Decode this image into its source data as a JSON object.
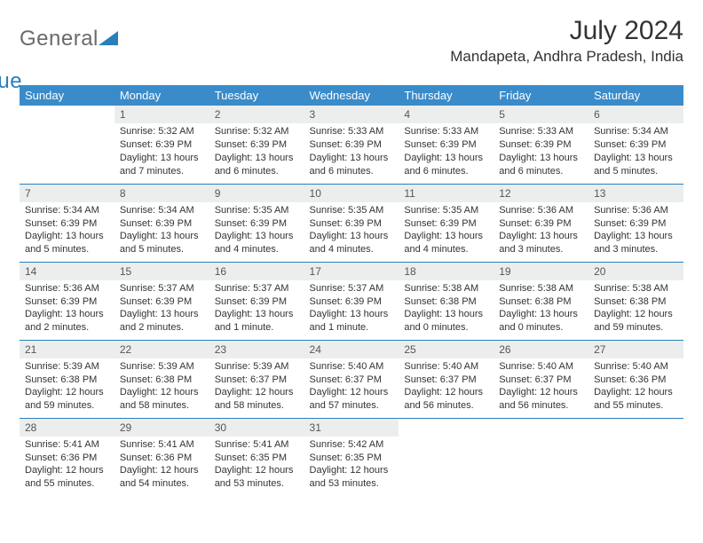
{
  "logo": {
    "part1": "General",
    "part2": "Blue"
  },
  "title": "July 2024",
  "location": "Mandapeta, Andhra Pradesh, India",
  "colors": {
    "header_bg": "#3a8bc9",
    "header_text": "#ffffff",
    "daynum_bg": "#eceeee",
    "row_sep": "#2a7fba",
    "logo_gray": "#6a6a6a",
    "logo_blue": "#2a7fba"
  },
  "day_headers": [
    "Sunday",
    "Monday",
    "Tuesday",
    "Wednesday",
    "Thursday",
    "Friday",
    "Saturday"
  ],
  "weeks": [
    [
      {
        "n": "",
        "sr": "",
        "ss": "",
        "dl": "",
        "empty": true
      },
      {
        "n": "1",
        "sr": "Sunrise: 5:32 AM",
        "ss": "Sunset: 6:39 PM",
        "dl": "Daylight: 13 hours and 7 minutes."
      },
      {
        "n": "2",
        "sr": "Sunrise: 5:32 AM",
        "ss": "Sunset: 6:39 PM",
        "dl": "Daylight: 13 hours and 6 minutes."
      },
      {
        "n": "3",
        "sr": "Sunrise: 5:33 AM",
        "ss": "Sunset: 6:39 PM",
        "dl": "Daylight: 13 hours and 6 minutes."
      },
      {
        "n": "4",
        "sr": "Sunrise: 5:33 AM",
        "ss": "Sunset: 6:39 PM",
        "dl": "Daylight: 13 hours and 6 minutes."
      },
      {
        "n": "5",
        "sr": "Sunrise: 5:33 AM",
        "ss": "Sunset: 6:39 PM",
        "dl": "Daylight: 13 hours and 6 minutes."
      },
      {
        "n": "6",
        "sr": "Sunrise: 5:34 AM",
        "ss": "Sunset: 6:39 PM",
        "dl": "Daylight: 13 hours and 5 minutes."
      }
    ],
    [
      {
        "n": "7",
        "sr": "Sunrise: 5:34 AM",
        "ss": "Sunset: 6:39 PM",
        "dl": "Daylight: 13 hours and 5 minutes."
      },
      {
        "n": "8",
        "sr": "Sunrise: 5:34 AM",
        "ss": "Sunset: 6:39 PM",
        "dl": "Daylight: 13 hours and 5 minutes."
      },
      {
        "n": "9",
        "sr": "Sunrise: 5:35 AM",
        "ss": "Sunset: 6:39 PM",
        "dl": "Daylight: 13 hours and 4 minutes."
      },
      {
        "n": "10",
        "sr": "Sunrise: 5:35 AM",
        "ss": "Sunset: 6:39 PM",
        "dl": "Daylight: 13 hours and 4 minutes."
      },
      {
        "n": "11",
        "sr": "Sunrise: 5:35 AM",
        "ss": "Sunset: 6:39 PM",
        "dl": "Daylight: 13 hours and 4 minutes."
      },
      {
        "n": "12",
        "sr": "Sunrise: 5:36 AM",
        "ss": "Sunset: 6:39 PM",
        "dl": "Daylight: 13 hours and 3 minutes."
      },
      {
        "n": "13",
        "sr": "Sunrise: 5:36 AM",
        "ss": "Sunset: 6:39 PM",
        "dl": "Daylight: 13 hours and 3 minutes."
      }
    ],
    [
      {
        "n": "14",
        "sr": "Sunrise: 5:36 AM",
        "ss": "Sunset: 6:39 PM",
        "dl": "Daylight: 13 hours and 2 minutes."
      },
      {
        "n": "15",
        "sr": "Sunrise: 5:37 AM",
        "ss": "Sunset: 6:39 PM",
        "dl": "Daylight: 13 hours and 2 minutes."
      },
      {
        "n": "16",
        "sr": "Sunrise: 5:37 AM",
        "ss": "Sunset: 6:39 PM",
        "dl": "Daylight: 13 hours and 1 minute."
      },
      {
        "n": "17",
        "sr": "Sunrise: 5:37 AM",
        "ss": "Sunset: 6:39 PM",
        "dl": "Daylight: 13 hours and 1 minute."
      },
      {
        "n": "18",
        "sr": "Sunrise: 5:38 AM",
        "ss": "Sunset: 6:38 PM",
        "dl": "Daylight: 13 hours and 0 minutes."
      },
      {
        "n": "19",
        "sr": "Sunrise: 5:38 AM",
        "ss": "Sunset: 6:38 PM",
        "dl": "Daylight: 13 hours and 0 minutes."
      },
      {
        "n": "20",
        "sr": "Sunrise: 5:38 AM",
        "ss": "Sunset: 6:38 PM",
        "dl": "Daylight: 12 hours and 59 minutes."
      }
    ],
    [
      {
        "n": "21",
        "sr": "Sunrise: 5:39 AM",
        "ss": "Sunset: 6:38 PM",
        "dl": "Daylight: 12 hours and 59 minutes."
      },
      {
        "n": "22",
        "sr": "Sunrise: 5:39 AM",
        "ss": "Sunset: 6:38 PM",
        "dl": "Daylight: 12 hours and 58 minutes."
      },
      {
        "n": "23",
        "sr": "Sunrise: 5:39 AM",
        "ss": "Sunset: 6:37 PM",
        "dl": "Daylight: 12 hours and 58 minutes."
      },
      {
        "n": "24",
        "sr": "Sunrise: 5:40 AM",
        "ss": "Sunset: 6:37 PM",
        "dl": "Daylight: 12 hours and 57 minutes."
      },
      {
        "n": "25",
        "sr": "Sunrise: 5:40 AM",
        "ss": "Sunset: 6:37 PM",
        "dl": "Daylight: 12 hours and 56 minutes."
      },
      {
        "n": "26",
        "sr": "Sunrise: 5:40 AM",
        "ss": "Sunset: 6:37 PM",
        "dl": "Daylight: 12 hours and 56 minutes."
      },
      {
        "n": "27",
        "sr": "Sunrise: 5:40 AM",
        "ss": "Sunset: 6:36 PM",
        "dl": "Daylight: 12 hours and 55 minutes."
      }
    ],
    [
      {
        "n": "28",
        "sr": "Sunrise: 5:41 AM",
        "ss": "Sunset: 6:36 PM",
        "dl": "Daylight: 12 hours and 55 minutes."
      },
      {
        "n": "29",
        "sr": "Sunrise: 5:41 AM",
        "ss": "Sunset: 6:36 PM",
        "dl": "Daylight: 12 hours and 54 minutes."
      },
      {
        "n": "30",
        "sr": "Sunrise: 5:41 AM",
        "ss": "Sunset: 6:35 PM",
        "dl": "Daylight: 12 hours and 53 minutes."
      },
      {
        "n": "31",
        "sr": "Sunrise: 5:42 AM",
        "ss": "Sunset: 6:35 PM",
        "dl": "Daylight: 12 hours and 53 minutes."
      },
      {
        "n": "",
        "sr": "",
        "ss": "",
        "dl": "",
        "empty": true
      },
      {
        "n": "",
        "sr": "",
        "ss": "",
        "dl": "",
        "empty": true
      },
      {
        "n": "",
        "sr": "",
        "ss": "",
        "dl": "",
        "empty": true
      }
    ]
  ]
}
